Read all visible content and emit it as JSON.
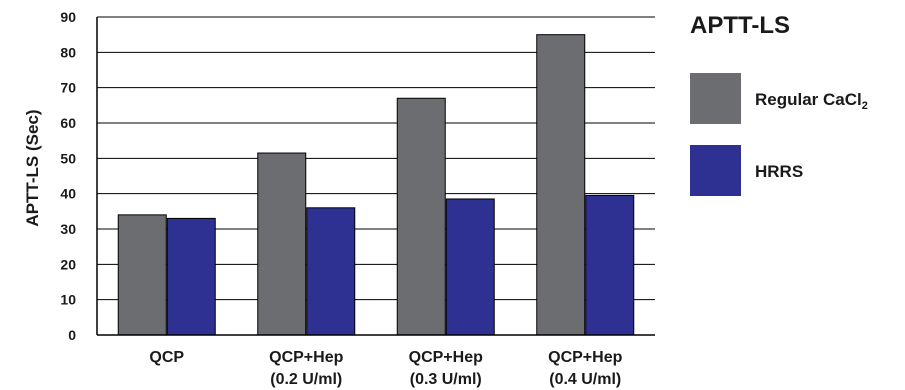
{
  "chart_data": {
    "type": "bar",
    "title": "APTT-LS",
    "xlabel": "",
    "ylabel": "APTT-LS (Sec)",
    "ylim": [
      0,
      90
    ],
    "yticks": [
      "0",
      "10",
      "20",
      "30",
      "40",
      "50",
      "60",
      "70",
      "80",
      "90"
    ],
    "grid": true,
    "legend_position": "right",
    "categories": [
      [
        "QCP"
      ],
      [
        "QCP+Hep",
        "(0.2 U/ml)"
      ],
      [
        "QCP+Hep",
        "(0.3 U/ml)"
      ],
      [
        "QCP+Hep",
        "(0.4 U/ml)"
      ]
    ],
    "series": [
      {
        "name": "Regular CaCl",
        "name_subscript": "2",
        "color": "#6c6d70",
        "values": [
          34,
          51.5,
          67,
          85
        ]
      },
      {
        "name": "HRRS",
        "name_subscript": "",
        "color": "#2e3192",
        "values": [
          33,
          36,
          38.5,
          39.5
        ]
      }
    ]
  }
}
